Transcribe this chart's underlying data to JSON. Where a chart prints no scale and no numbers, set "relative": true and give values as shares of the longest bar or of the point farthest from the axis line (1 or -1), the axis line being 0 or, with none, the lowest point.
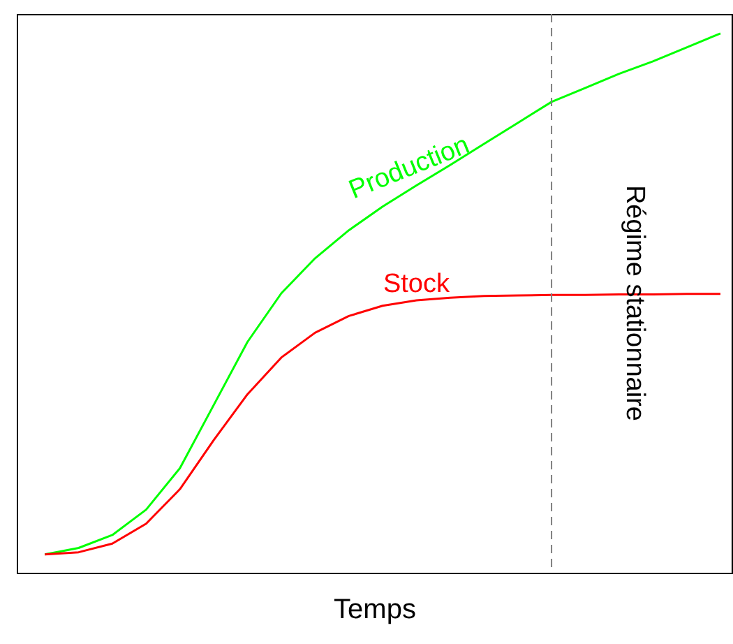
{
  "chart_data": {
    "type": "line",
    "relative": true,
    "xlabel": "Temps",
    "categories": [
      null,
      null,
      null,
      null,
      null,
      null,
      null,
      null,
      null,
      null,
      null,
      null,
      null,
      null,
      null,
      null,
      null,
      null,
      null,
      null,
      null
    ],
    "series": [
      {
        "name": "Production",
        "color": "#00ff00",
        "values": [
          0.034,
          0.046,
          0.07,
          0.117,
          0.194,
          0.311,
          0.428,
          0.518,
          0.583,
          0.635,
          0.679,
          0.718,
          0.756,
          0.795,
          0.834,
          0.873,
          0.899,
          0.925,
          0.948,
          0.974,
          1
        ]
      },
      {
        "name": "Stock",
        "color": "#ff0000",
        "values": [
          0.034,
          0.038,
          0.054,
          0.091,
          0.155,
          0.246,
          0.331,
          0.399,
          0.445,
          0.476,
          0.495,
          0.505,
          0.51,
          0.513,
          0.514,
          0.515,
          0.515,
          0.516,
          0.516,
          0.517,
          0.517
        ]
      }
    ],
    "annotations": [
      "Régime stationnaire"
    ]
  }
}
